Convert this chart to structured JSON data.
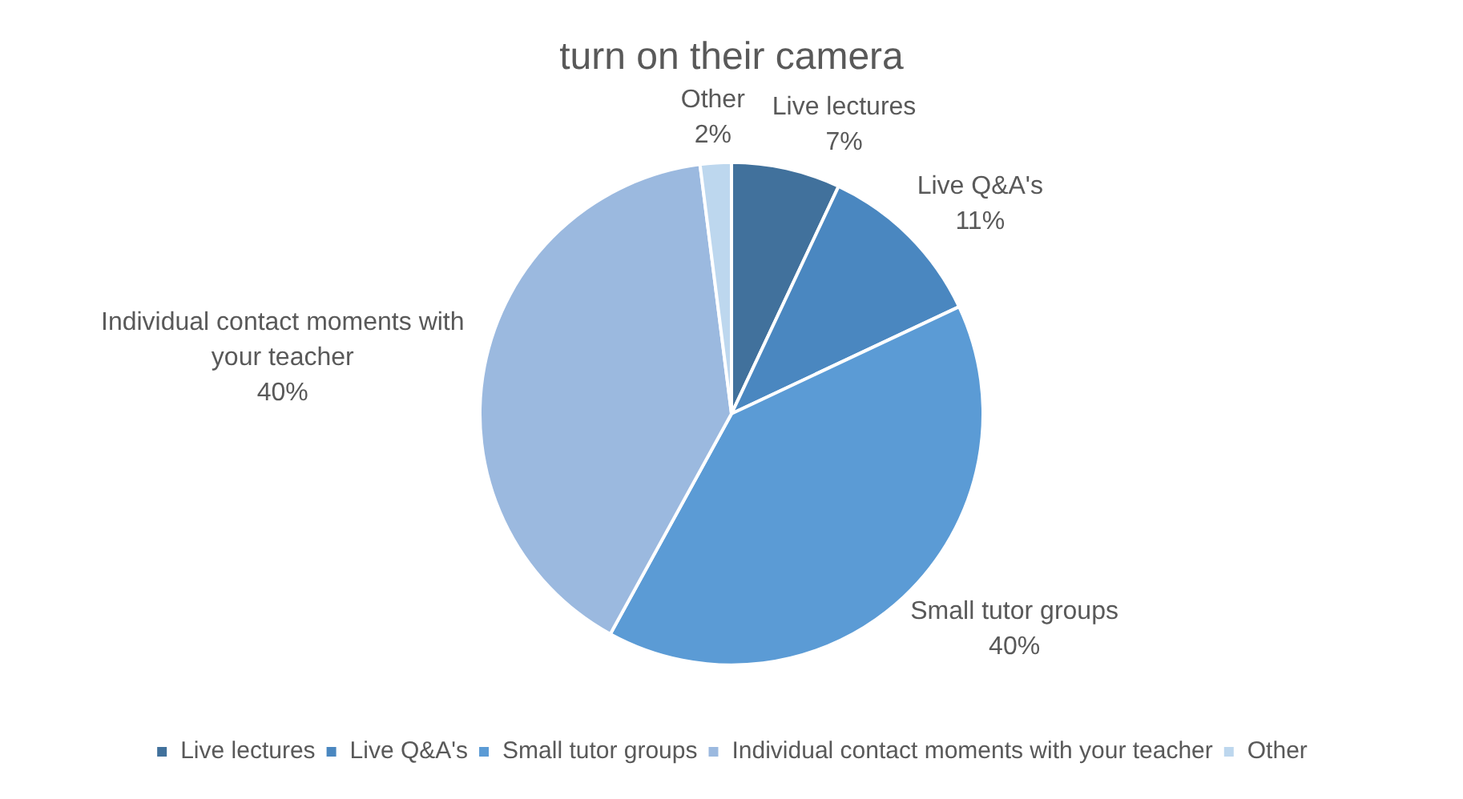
{
  "chart_data": {
    "type": "pie",
    "title": "turn on their camera",
    "categories": [
      "Live lectures",
      "Live Q&A's",
      "Small tutor groups",
      "Individual contact moments with your teacher",
      "Other"
    ],
    "values": [
      7,
      11,
      40,
      40,
      2
    ],
    "colors": [
      "#41719c",
      "#4a87c0",
      "#5b9bd5",
      "#9bb9df",
      "#bdd7ee"
    ],
    "value_labels": [
      "7%",
      "11%",
      "40%",
      "40%",
      "2%"
    ],
    "legend": "bottom"
  }
}
